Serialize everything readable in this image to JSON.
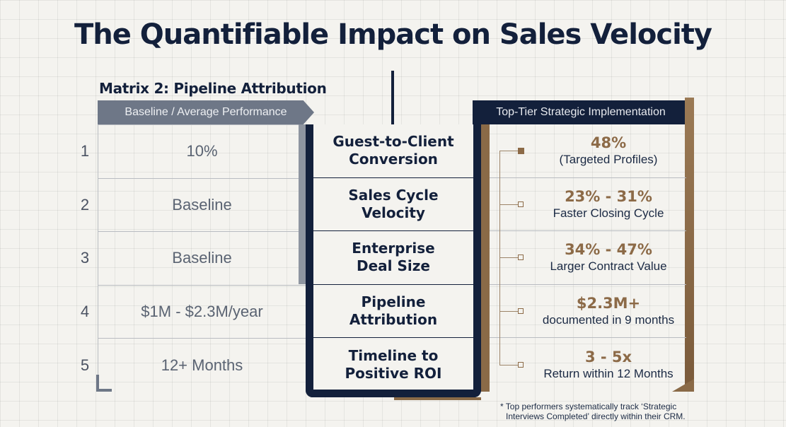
{
  "title": "The Quantifiable Impact on Sales Velocity",
  "subtitle": "Matrix 2: Pipeline Attribution",
  "left_header": "Baseline / Average Performance",
  "right_header": "Top-Tier Strategic Implementation",
  "rows": [
    {
      "num": "1",
      "baseline": "10%",
      "metric": "Guest-to-Client\nConversion",
      "value": "48%",
      "desc": "(Targeted Profiles)"
    },
    {
      "num": "2",
      "baseline": "Baseline",
      "metric": "Sales Cycle\nVelocity",
      "value": "23% - 31%",
      "desc": "Faster Closing Cycle"
    },
    {
      "num": "3",
      "baseline": "Baseline",
      "metric": "Enterprise\nDeal Size",
      "value": "34% - 47%",
      "desc": "Larger Contract Value"
    },
    {
      "num": "4",
      "baseline": "$1M - $2.3M/year",
      "metric": "Pipeline\nAttribution",
      "value": "$2.3M+",
      "desc": "documented in 9 months"
    },
    {
      "num": "5",
      "baseline": "12+ Months",
      "metric": "Timeline to\nPositive ROI",
      "value": "3 - 5x",
      "desc": "Return within 12 Months"
    }
  ],
  "footnote": [
    "* Top performers systematically track ‘Strategic",
    "Interviews Completed’ directly within their CRM."
  ]
}
